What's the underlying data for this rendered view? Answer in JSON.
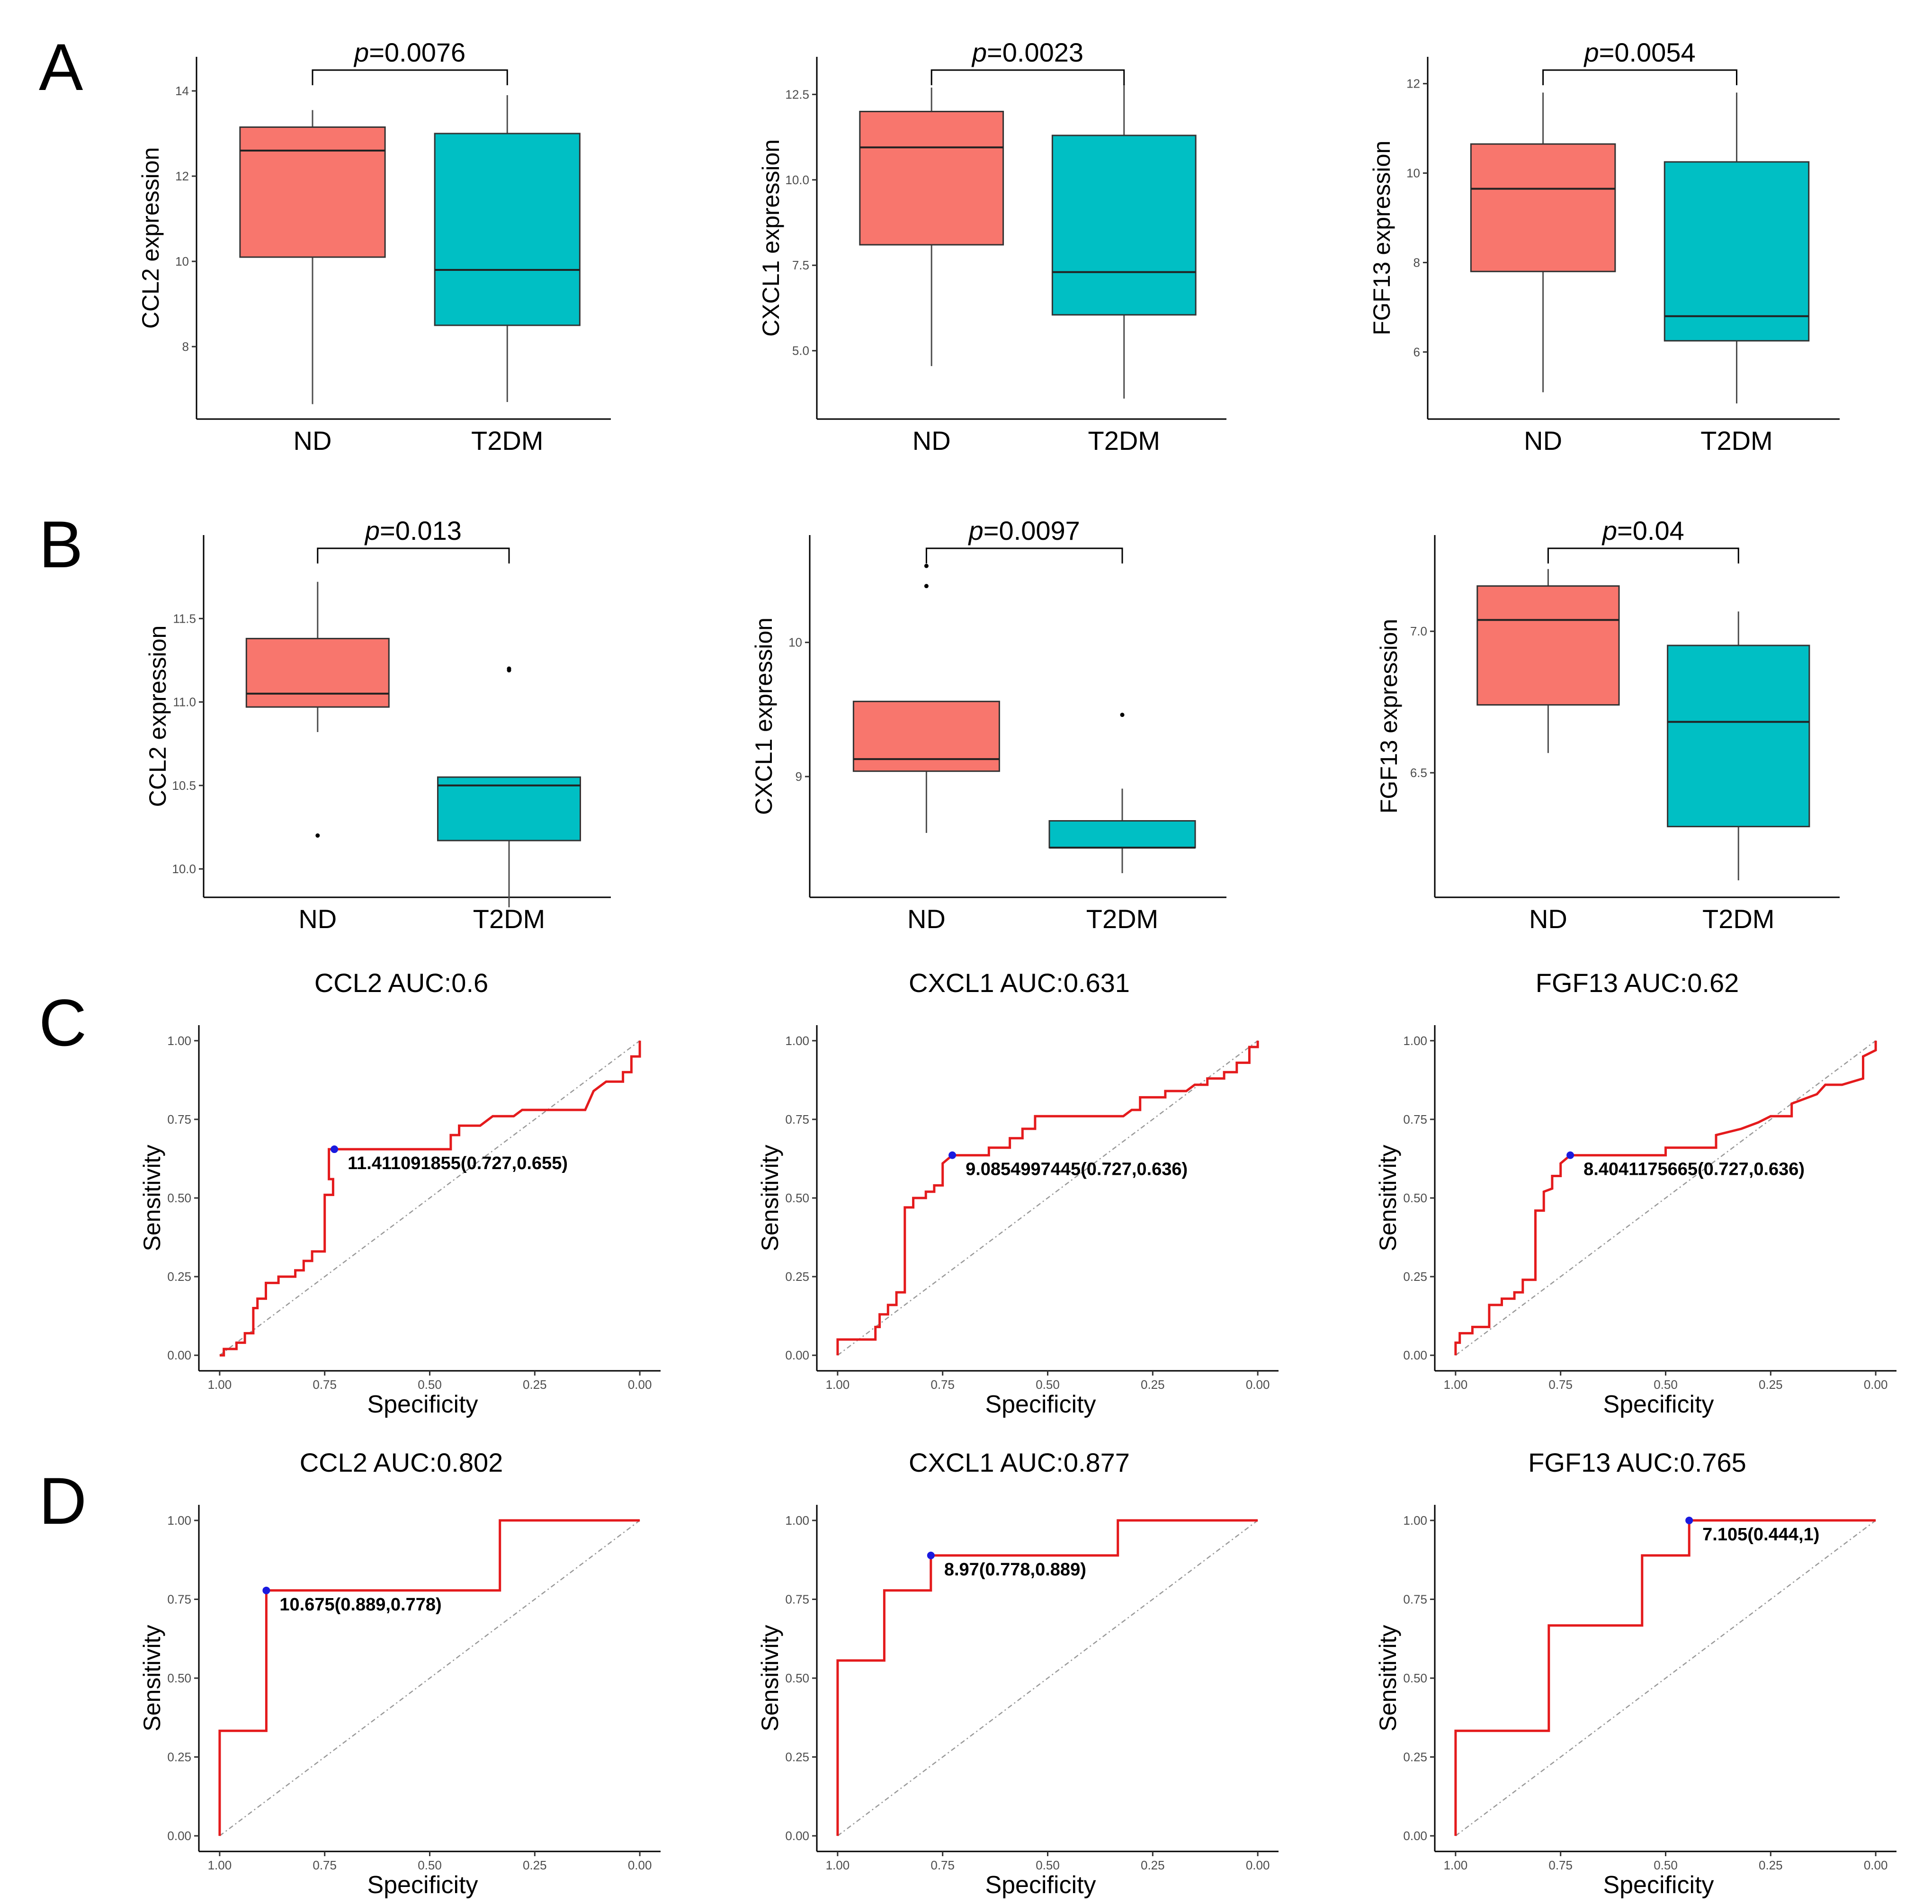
{
  "colors": {
    "nd": "#F8766D",
    "t2dm": "#00BFC4",
    "roc": "#E41A1C",
    "cutoff": "#1A1ADF",
    "diagonal": "#999999"
  },
  "panel_letters": {
    "A": "A",
    "B": "B",
    "C": "C",
    "D": "D"
  },
  "chart_data": [
    {
      "panel": "A",
      "type": "box",
      "gene": "CCL2",
      "ylabel": "CCL2 expression",
      "categories": [
        "ND",
        "T2DM"
      ],
      "ylim": [
        6.3,
        14.8
      ],
      "yticks": [
        8,
        10,
        12,
        14
      ],
      "p_prefix": "p",
      "p_value": "=0.0076",
      "boxes": [
        {
          "name": "ND",
          "whisker_low": 6.65,
          "q1": 10.1,
          "median": 12.6,
          "q3": 13.15,
          "whisker_high": 13.55,
          "outliers": []
        },
        {
          "name": "T2DM",
          "whisker_low": 6.7,
          "q1": 8.5,
          "median": 9.8,
          "q3": 13.0,
          "whisker_high": 13.9,
          "outliers": []
        }
      ]
    },
    {
      "panel": "A",
      "type": "box",
      "gene": "CXCL1",
      "ylabel": "CXCL1 expression",
      "categories": [
        "ND",
        "T2DM"
      ],
      "ylim": [
        3.0,
        13.6
      ],
      "yticks": [
        "5.0",
        "7.5",
        "10.0",
        "12.5"
      ],
      "p_prefix": "p",
      "p_value": "=0.0023",
      "boxes": [
        {
          "name": "ND",
          "whisker_low": 4.55,
          "q1": 8.1,
          "median": 10.95,
          "q3": 12.0,
          "whisker_high": 12.7,
          "outliers": []
        },
        {
          "name": "T2DM",
          "whisker_low": 3.6,
          "q1": 6.05,
          "median": 7.3,
          "q3": 11.3,
          "whisker_high": 12.8,
          "outliers": []
        }
      ]
    },
    {
      "panel": "A",
      "type": "box",
      "gene": "FGF13",
      "ylabel": "FGF13 expression",
      "categories": [
        "ND",
        "T2DM"
      ],
      "ylim": [
        4.5,
        12.6
      ],
      "yticks": [
        6,
        8,
        10,
        12
      ],
      "p_prefix": "p",
      "p_value": "=0.0054",
      "boxes": [
        {
          "name": "ND",
          "whisker_low": 5.1,
          "q1": 7.8,
          "median": 9.65,
          "q3": 10.65,
          "whisker_high": 11.8,
          "outliers": []
        },
        {
          "name": "T2DM",
          "whisker_low": 4.85,
          "q1": 6.25,
          "median": 6.8,
          "q3": 10.25,
          "whisker_high": 11.8,
          "outliers": []
        }
      ]
    },
    {
      "panel": "B",
      "type": "box",
      "gene": "CCL2",
      "ylabel": "CCL2 expression",
      "categories": [
        "ND",
        "T2DM"
      ],
      "ylim": [
        9.83,
        12.0
      ],
      "yticks": [
        "10.0",
        "10.5",
        "11.0",
        "11.5"
      ],
      "p_prefix": "p",
      "p_value": "=0.013",
      "boxes": [
        {
          "name": "ND",
          "whisker_low": 10.82,
          "q1": 10.97,
          "median": 11.05,
          "q3": 11.38,
          "whisker_high": 11.72,
          "outliers": [
            10.2
          ]
        },
        {
          "name": "T2DM",
          "whisker_low": 9.77,
          "q1": 10.17,
          "median": 10.5,
          "q3": 10.55,
          "whisker_high": 10.55,
          "outliers": [
            11.19,
            11.2
          ]
        }
      ]
    },
    {
      "panel": "B",
      "type": "box",
      "gene": "CXCL1",
      "ylabel": "CXCL1 expression",
      "categories": [
        "ND",
        "T2DM"
      ],
      "ylim": [
        8.1,
        10.8
      ],
      "yticks": [
        9,
        10
      ],
      "p_prefix": "p",
      "p_value": "=0.0097",
      "boxes": [
        {
          "name": "ND",
          "whisker_low": 8.58,
          "q1": 9.04,
          "median": 9.13,
          "q3": 9.56,
          "whisker_high": 9.56,
          "outliers": [
            10.42,
            10.57
          ]
        },
        {
          "name": "T2DM",
          "whisker_low": 8.28,
          "q1": 8.47,
          "median": 8.47,
          "q3": 8.67,
          "whisker_high": 8.91,
          "outliers": [
            9.46
          ]
        }
      ]
    },
    {
      "panel": "B",
      "type": "box",
      "gene": "FGF13",
      "ylabel": "FGF13 expression",
      "categories": [
        "ND",
        "T2DM"
      ],
      "ylim": [
        6.06,
        7.34
      ],
      "yticks": [
        "6.5",
        "7.0"
      ],
      "p_prefix": "p",
      "p_value": "=0.04",
      "boxes": [
        {
          "name": "ND",
          "whisker_low": 6.57,
          "q1": 6.74,
          "median": 7.04,
          "q3": 7.16,
          "whisker_high": 7.22,
          "outliers": []
        },
        {
          "name": "T2DM",
          "whisker_low": 6.12,
          "q1": 6.31,
          "median": 6.68,
          "q3": 6.95,
          "whisker_high": 7.07,
          "outliers": []
        }
      ]
    },
    {
      "panel": "C",
      "type": "line",
      "gene": "CCL2",
      "title": "CCL2   AUC:0.6",
      "xlabel": "Specificity",
      "ylabel": "Sensitivity",
      "xlim": [
        1.0,
        0.0
      ],
      "ylim": [
        0.0,
        1.0
      ],
      "xticks": [
        "1.00",
        "0.75",
        "0.50",
        "0.25",
        "0.00"
      ],
      "yticks": [
        "0.00",
        "0.25",
        "0.50",
        "0.75",
        "1.00"
      ],
      "cutoff": {
        "specificity": 0.727,
        "sensitivity": 0.655,
        "label": "11.411091855(0.727,0.655)"
      },
      "roc": [
        [
          1,
          0
        ],
        [
          0.99,
          0
        ],
        [
          0.99,
          0.02
        ],
        [
          0.96,
          0.02
        ],
        [
          0.96,
          0.04
        ],
        [
          0.94,
          0.04
        ],
        [
          0.94,
          0.07
        ],
        [
          0.92,
          0.07
        ],
        [
          0.92,
          0.15
        ],
        [
          0.91,
          0.15
        ],
        [
          0.91,
          0.18
        ],
        [
          0.89,
          0.18
        ],
        [
          0.89,
          0.23
        ],
        [
          0.86,
          0.23
        ],
        [
          0.86,
          0.25
        ],
        [
          0.82,
          0.25
        ],
        [
          0.82,
          0.27
        ],
        [
          0.8,
          0.27
        ],
        [
          0.8,
          0.3
        ],
        [
          0.78,
          0.3
        ],
        [
          0.78,
          0.33
        ],
        [
          0.75,
          0.33
        ],
        [
          0.75,
          0.51
        ],
        [
          0.73,
          0.51
        ],
        [
          0.73,
          0.56
        ],
        [
          0.74,
          0.56
        ],
        [
          0.74,
          0.655
        ],
        [
          0.727,
          0.655
        ],
        [
          0.45,
          0.655
        ],
        [
          0.45,
          0.7
        ],
        [
          0.43,
          0.7
        ],
        [
          0.43,
          0.73
        ],
        [
          0.38,
          0.73
        ],
        [
          0.35,
          0.76
        ],
        [
          0.3,
          0.76
        ],
        [
          0.28,
          0.78
        ],
        [
          0.13,
          0.78
        ],
        [
          0.11,
          0.84
        ],
        [
          0.08,
          0.87
        ],
        [
          0.04,
          0.87
        ],
        [
          0.04,
          0.9
        ],
        [
          0.02,
          0.9
        ],
        [
          0.02,
          0.95
        ],
        [
          0.0,
          0.95
        ],
        [
          0.0,
          1.0
        ]
      ]
    },
    {
      "panel": "C",
      "type": "line",
      "gene": "CXCL1",
      "title": "CXCL1   AUC:0.631",
      "xlabel": "Specificity",
      "ylabel": "Sensitivity",
      "xlim": [
        1.0,
        0.0
      ],
      "ylim": [
        0.0,
        1.0
      ],
      "xticks": [
        "1.00",
        "0.75",
        "0.50",
        "0.25",
        "0.00"
      ],
      "yticks": [
        "0.00",
        "0.25",
        "0.50",
        "0.75",
        "1.00"
      ],
      "cutoff": {
        "specificity": 0.727,
        "sensitivity": 0.636,
        "label": "9.0854997445(0.727,0.636)"
      },
      "roc": [
        [
          1,
          0
        ],
        [
          1,
          0.05
        ],
        [
          0.91,
          0.05
        ],
        [
          0.91,
          0.09
        ],
        [
          0.9,
          0.09
        ],
        [
          0.9,
          0.13
        ],
        [
          0.88,
          0.13
        ],
        [
          0.88,
          0.16
        ],
        [
          0.86,
          0.16
        ],
        [
          0.86,
          0.2
        ],
        [
          0.84,
          0.2
        ],
        [
          0.84,
          0.47
        ],
        [
          0.82,
          0.47
        ],
        [
          0.82,
          0.5
        ],
        [
          0.79,
          0.5
        ],
        [
          0.79,
          0.52
        ],
        [
          0.77,
          0.52
        ],
        [
          0.77,
          0.54
        ],
        [
          0.75,
          0.54
        ],
        [
          0.75,
          0.61
        ],
        [
          0.727,
          0.636
        ],
        [
          0.64,
          0.636
        ],
        [
          0.64,
          0.66
        ],
        [
          0.59,
          0.66
        ],
        [
          0.59,
          0.69
        ],
        [
          0.56,
          0.69
        ],
        [
          0.56,
          0.72
        ],
        [
          0.53,
          0.72
        ],
        [
          0.53,
          0.76
        ],
        [
          0.32,
          0.76
        ],
        [
          0.3,
          0.78
        ],
        [
          0.28,
          0.78
        ],
        [
          0.28,
          0.82
        ],
        [
          0.22,
          0.82
        ],
        [
          0.22,
          0.84
        ],
        [
          0.17,
          0.84
        ],
        [
          0.15,
          0.86
        ],
        [
          0.12,
          0.86
        ],
        [
          0.12,
          0.88
        ],
        [
          0.08,
          0.88
        ],
        [
          0.08,
          0.9
        ],
        [
          0.05,
          0.9
        ],
        [
          0.05,
          0.93
        ],
        [
          0.02,
          0.93
        ],
        [
          0.02,
          0.98
        ],
        [
          0.0,
          0.98
        ],
        [
          0.0,
          1.0
        ]
      ]
    },
    {
      "panel": "C",
      "type": "line",
      "gene": "FGF13",
      "title": "FGF13   AUC:0.62",
      "xlabel": "Specificity",
      "ylabel": "Sensitivity",
      "xlim": [
        1.0,
        0.0
      ],
      "ylim": [
        0.0,
        1.0
      ],
      "xticks": [
        "1.00",
        "0.75",
        "0.50",
        "0.25",
        "0.00"
      ],
      "yticks": [
        "0.00",
        "0.25",
        "0.50",
        "0.75",
        "1.00"
      ],
      "cutoff": {
        "specificity": 0.727,
        "sensitivity": 0.636,
        "label": "8.4041175665(0.727,0.636)"
      },
      "roc": [
        [
          1,
          0
        ],
        [
          1,
          0.04
        ],
        [
          0.99,
          0.04
        ],
        [
          0.99,
          0.07
        ],
        [
          0.96,
          0.07
        ],
        [
          0.96,
          0.09
        ],
        [
          0.92,
          0.09
        ],
        [
          0.92,
          0.16
        ],
        [
          0.89,
          0.16
        ],
        [
          0.89,
          0.18
        ],
        [
          0.86,
          0.18
        ],
        [
          0.86,
          0.2
        ],
        [
          0.84,
          0.2
        ],
        [
          0.84,
          0.24
        ],
        [
          0.81,
          0.24
        ],
        [
          0.81,
          0.46
        ],
        [
          0.79,
          0.46
        ],
        [
          0.79,
          0.52
        ],
        [
          0.77,
          0.53
        ],
        [
          0.77,
          0.57
        ],
        [
          0.75,
          0.57
        ],
        [
          0.75,
          0.61
        ],
        [
          0.727,
          0.636
        ],
        [
          0.5,
          0.636
        ],
        [
          0.5,
          0.66
        ],
        [
          0.38,
          0.66
        ],
        [
          0.38,
          0.7
        ],
        [
          0.32,
          0.72
        ],
        [
          0.28,
          0.74
        ],
        [
          0.25,
          0.76
        ],
        [
          0.2,
          0.76
        ],
        [
          0.2,
          0.8
        ],
        [
          0.14,
          0.83
        ],
        [
          0.12,
          0.86
        ],
        [
          0.08,
          0.86
        ],
        [
          0.03,
          0.88
        ],
        [
          0.03,
          0.95
        ],
        [
          0.0,
          0.97
        ],
        [
          0.0,
          1.0
        ]
      ]
    },
    {
      "panel": "D",
      "type": "line",
      "gene": "CCL2",
      "title": "CCL2   AUC:0.802",
      "xlabel": "Specificity",
      "ylabel": "Sensitivity",
      "xlim": [
        1.0,
        0.0
      ],
      "ylim": [
        0.0,
        1.0
      ],
      "xticks": [
        "1.00",
        "0.75",
        "0.50",
        "0.25",
        "0.00"
      ],
      "yticks": [
        "0.00",
        "0.25",
        "0.50",
        "0.75",
        "1.00"
      ],
      "cutoff": {
        "specificity": 0.889,
        "sensitivity": 0.778,
        "label": "10.675(0.889,0.778)"
      },
      "roc": [
        [
          1,
          0
        ],
        [
          1,
          0.333
        ],
        [
          0.889,
          0.333
        ],
        [
          0.889,
          0.778
        ],
        [
          0.333,
          0.778
        ],
        [
          0.333,
          1.0
        ],
        [
          0.0,
          1.0
        ]
      ]
    },
    {
      "panel": "D",
      "type": "line",
      "gene": "CXCL1",
      "title": "CXCL1   AUC:0.877",
      "xlabel": "Specificity",
      "ylabel": "Sensitivity",
      "xlim": [
        1.0,
        0.0
      ],
      "ylim": [
        0.0,
        1.0
      ],
      "xticks": [
        "1.00",
        "0.75",
        "0.50",
        "0.25",
        "0.00"
      ],
      "yticks": [
        "0.00",
        "0.25",
        "0.50",
        "0.75",
        "1.00"
      ],
      "cutoff": {
        "specificity": 0.778,
        "sensitivity": 0.889,
        "label": "8.97(0.778,0.889)"
      },
      "roc": [
        [
          1,
          0
        ],
        [
          1,
          0.556
        ],
        [
          0.889,
          0.556
        ],
        [
          0.889,
          0.778
        ],
        [
          0.778,
          0.778
        ],
        [
          0.778,
          0.889
        ],
        [
          0.333,
          0.889
        ],
        [
          0.333,
          1.0
        ],
        [
          0.0,
          1.0
        ]
      ]
    },
    {
      "panel": "D",
      "type": "line",
      "gene": "FGF13",
      "title": "FGF13   AUC:0.765",
      "xlabel": "Specificity",
      "ylabel": "Sensitivity",
      "xlim": [
        1.0,
        0.0
      ],
      "ylim": [
        0.0,
        1.0
      ],
      "xticks": [
        "1.00",
        "0.75",
        "0.50",
        "0.25",
        "0.00"
      ],
      "yticks": [
        "0.00",
        "0.25",
        "0.50",
        "0.75",
        "1.00"
      ],
      "cutoff": {
        "specificity": 0.444,
        "sensitivity": 1.0,
        "label": "7.105(0.444,1)"
      },
      "roc": [
        [
          1,
          0
        ],
        [
          1,
          0.333
        ],
        [
          0.778,
          0.333
        ],
        [
          0.778,
          0.667
        ],
        [
          0.556,
          0.667
        ],
        [
          0.556,
          0.889
        ],
        [
          0.444,
          0.889
        ],
        [
          0.444,
          1.0
        ],
        [
          0.0,
          1.0
        ]
      ]
    }
  ]
}
